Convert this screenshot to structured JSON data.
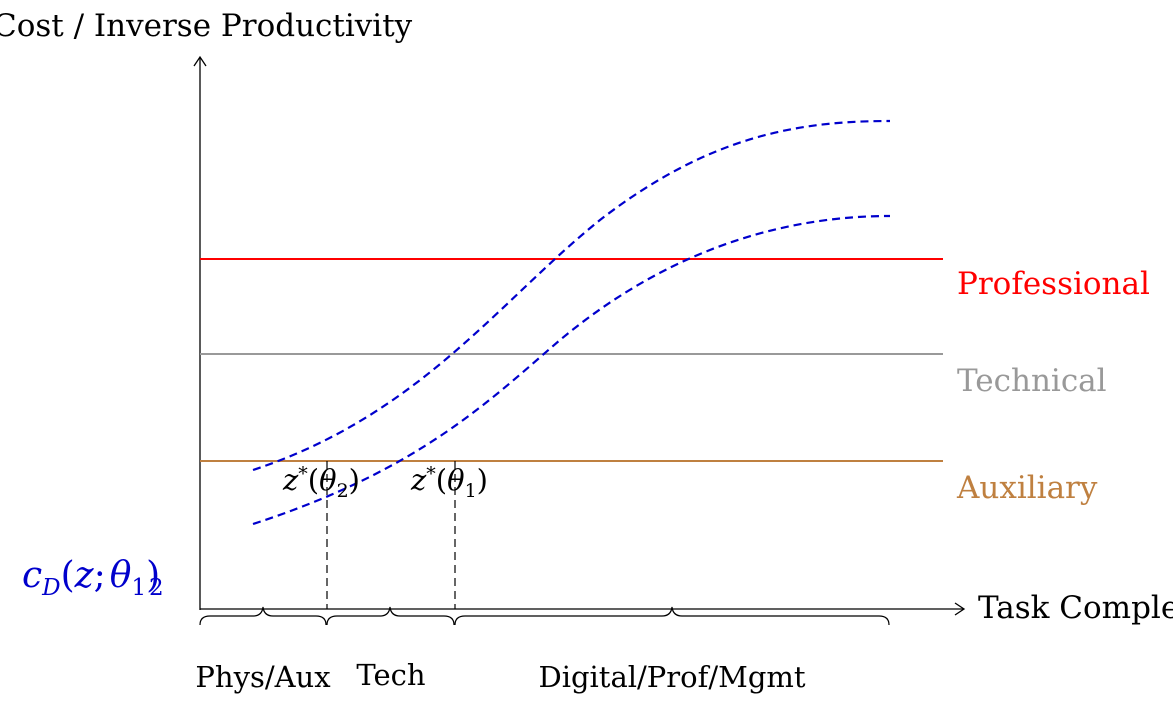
{
  "axes": {
    "y_label": "Cost / Inverse Productivity",
    "x_label": "Task Complexity"
  },
  "occupations": [
    {
      "key": "professional",
      "label": "Professional",
      "color": "#ff0000"
    },
    {
      "key": "technical",
      "label": "Technical",
      "color": "#999999"
    },
    {
      "key": "auxiliary",
      "label": "Auxiliary",
      "color": "#bf8040"
    }
  ],
  "curve_color": "#0000cc",
  "curve_label": "c_D(z; θ_1), c_D(z; θ_2)",
  "thresholds": [
    {
      "key": "theta2",
      "label": "z*(θ_2)"
    },
    {
      "key": "theta1",
      "label": "z*(θ_1)"
    }
  ],
  "brace_labels": [
    "Phys/Aux",
    "Tech",
    "Digital/Prof/Mgmt"
  ]
}
